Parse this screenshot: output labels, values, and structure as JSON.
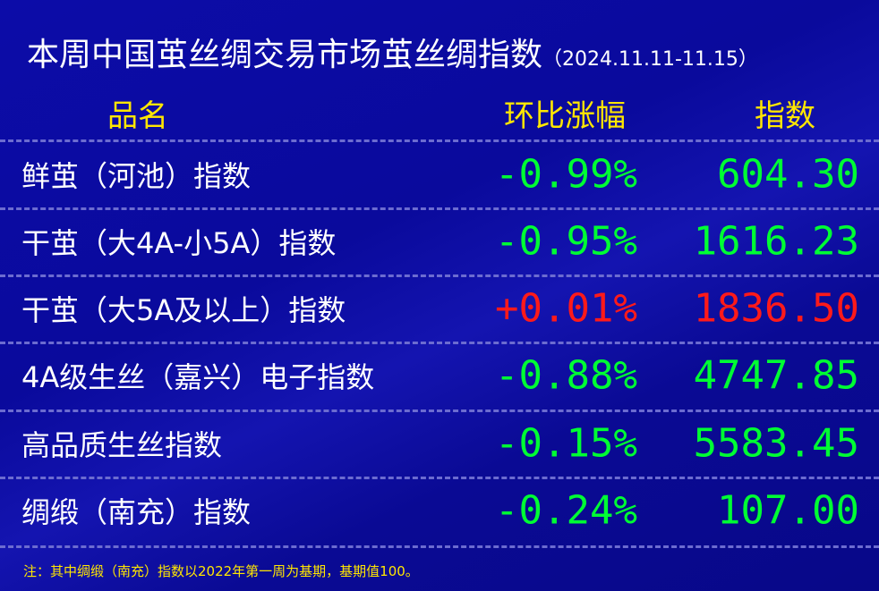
{
  "title": "本周中国茧丝绸交易市场茧丝绸指数",
  "date_range": "（2024.11.11-11.15）",
  "headers": {
    "name": "品名",
    "change": "环比涨幅",
    "index": "指数"
  },
  "colors": {
    "down": "#00ff33",
    "up": "#ff1a1a",
    "header": "#ffe600",
    "background": "#0a0a98"
  },
  "rows": [
    {
      "name": "鲜茧（河池）指数",
      "change": "-0.99%",
      "index": "604.30",
      "trend": "down"
    },
    {
      "name": "干茧（大4A-小5A）指数",
      "change": "-0.95%",
      "index": "1616.23",
      "trend": "down"
    },
    {
      "name": "干茧（大5A及以上）指数",
      "change": "+0.01%",
      "index": "1836.50",
      "trend": "up"
    },
    {
      "name": "4A级生丝（嘉兴）电子指数",
      "change": "-0.88%",
      "index": "4747.85",
      "trend": "down"
    },
    {
      "name": "高品质生丝指数",
      "change": "-0.15%",
      "index": "5583.45",
      "trend": "down"
    },
    {
      "name": "绸缎（南充）指数",
      "change": "-0.24%",
      "index": "107.00",
      "trend": "down"
    }
  ],
  "note": "注：其中绸缎（南充）指数以2022年第一周为基期，基期值100。"
}
